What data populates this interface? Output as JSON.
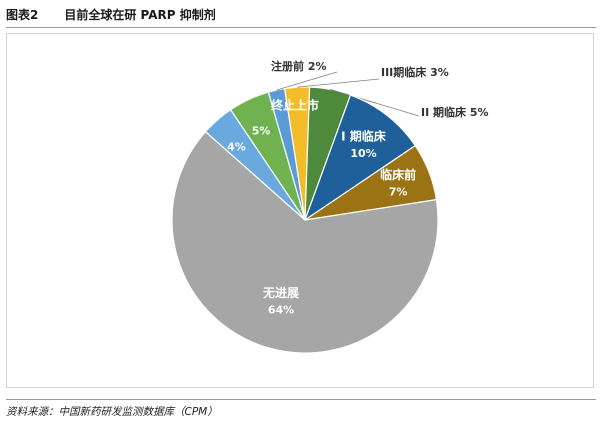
{
  "header": {
    "figure_number": "图表2",
    "title": "目前全球在研 PARP 抑制剂"
  },
  "source": "资料来源：中国新药研发监测数据库（CPM）",
  "chart_data": {
    "type": "pie",
    "title": "",
    "start_angle_deg": 344,
    "direction": "clockwise",
    "slices": [
      {
        "key": "zhuce",
        "label": "注册前",
        "value_label": "2%",
        "value": 2,
        "color": "#5b9bd5",
        "label_style": "outside-inline"
      },
      {
        "key": "p3",
        "label": "III期临床",
        "value_label": "3%",
        "value": 3,
        "color": "#f3bd2a",
        "label_style": "outside-inline"
      },
      {
        "key": "p2",
        "label": "II 期临床",
        "value_label": "5%",
        "value": 5,
        "color": "#4e8a3c",
        "label_style": "outside-inline"
      },
      {
        "key": "p1",
        "label": "I 期临床",
        "value_label": "10%",
        "value": 10,
        "color": "#1f5f9a",
        "label_style": "inside"
      },
      {
        "key": "preclin",
        "label": "临床前",
        "value_label": "7%",
        "value": 7,
        "color": "#9c7314",
        "label_style": "inside"
      },
      {
        "key": "nopro",
        "label": "无进展",
        "value_label": "64%",
        "value": 64,
        "color": "#a6a6a6",
        "label_style": "inside"
      },
      {
        "key": "stopped",
        "label": "终止上市",
        "value_label": "4%",
        "value": 4,
        "color": "#6aa9dd",
        "label_style": "inside-split"
      },
      {
        "key": "marketed",
        "label": "上市",
        "value_label": "5%",
        "value": 5,
        "color": "#6fb24f",
        "label_style": "inside-split"
      }
    ]
  }
}
